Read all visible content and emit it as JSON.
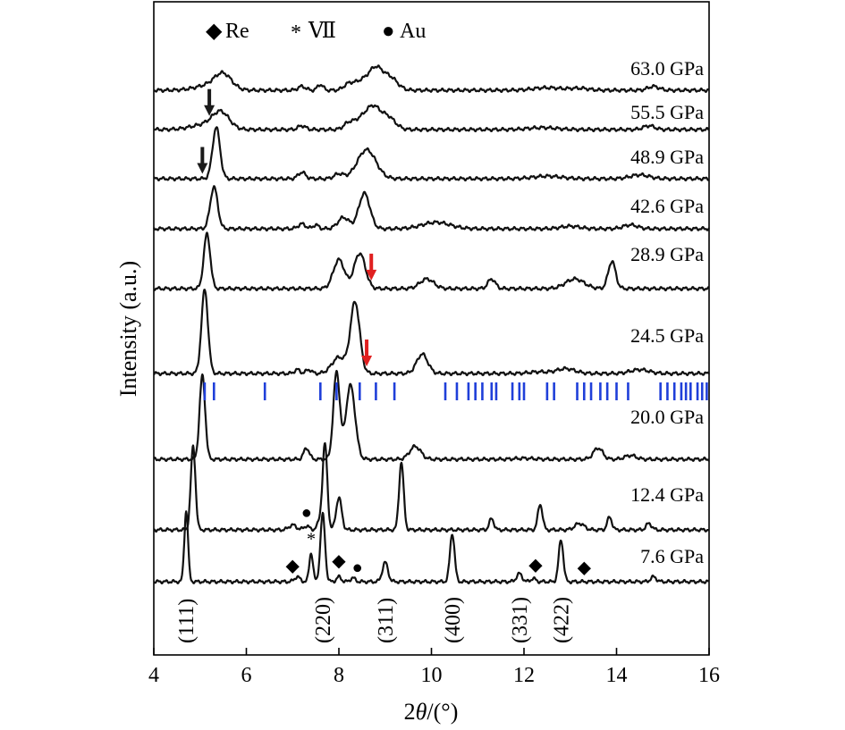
{
  "chart_data": {
    "type": "line",
    "xlabel_prefix": "2",
    "xlabel_theta": "θ",
    "xlabel_unit": "/(°)",
    "ylabel": "Intensity (a.u.)",
    "xlim": [
      4,
      16
    ],
    "xticks": [
      4,
      6,
      8,
      10,
      12,
      14,
      16
    ],
    "legend": [
      {
        "symbol": "◆",
        "label": "Re"
      },
      {
        "symbol": "*",
        "label": "Ⅶ"
      },
      {
        "symbol": "●",
        "label": "Au"
      }
    ],
    "series": [
      {
        "name": "63.0 GPa",
        "peaks": [
          [
            5.2,
            0.15,
            0.3
          ],
          [
            5.5,
            0.45,
            0.18
          ],
          [
            7.2,
            0.12,
            0.08
          ],
          [
            7.6,
            0.18,
            0.06
          ],
          [
            8.2,
            0.15,
            0.1
          ],
          [
            8.5,
            0.3,
            0.18
          ],
          [
            8.8,
            0.6,
            0.14
          ],
          [
            9.1,
            0.4,
            0.16
          ],
          [
            12.5,
            0.08,
            0.3
          ],
          [
            13.2,
            0.06,
            0.2
          ],
          [
            14.8,
            0.12,
            0.12
          ]
        ]
      },
      {
        "name": "55.5 GPa",
        "peaks": [
          [
            5.1,
            0.15,
            0.3
          ],
          [
            5.45,
            0.5,
            0.18
          ],
          [
            7.2,
            0.12,
            0.08
          ],
          [
            8.2,
            0.15,
            0.1
          ],
          [
            8.5,
            0.35,
            0.18
          ],
          [
            8.75,
            0.55,
            0.14
          ],
          [
            9.05,
            0.4,
            0.16
          ],
          [
            12.4,
            0.06,
            0.3
          ],
          [
            14.7,
            0.12,
            0.12
          ]
        ]
      },
      {
        "name": "48.9 GPa",
        "peaks": [
          [
            5.35,
            1.6,
            0.08
          ],
          [
            7.2,
            0.2,
            0.08
          ],
          [
            8.0,
            0.15,
            0.1
          ],
          [
            8.6,
            0.9,
            0.2
          ],
          [
            12.5,
            0.08,
            0.3
          ],
          [
            14.5,
            0.12,
            0.2
          ]
        ]
      },
      {
        "name": "42.6 GPa",
        "peaks": [
          [
            5.3,
            1.3,
            0.08
          ],
          [
            7.2,
            0.15,
            0.08
          ],
          [
            7.5,
            0.12,
            0.06
          ],
          [
            8.1,
            0.35,
            0.12
          ],
          [
            8.55,
            1.1,
            0.12
          ],
          [
            10.1,
            0.2,
            0.3
          ],
          [
            13.0,
            0.08,
            0.2
          ],
          [
            14.3,
            0.12,
            0.15
          ]
        ]
      },
      {
        "name": "28.9 GPa",
        "peaks": [
          [
            5.15,
            1.7,
            0.07
          ],
          [
            8.0,
            0.9,
            0.12
          ],
          [
            8.45,
            1.1,
            0.12
          ],
          [
            9.9,
            0.3,
            0.15
          ],
          [
            11.3,
            0.3,
            0.08
          ],
          [
            13.1,
            0.3,
            0.2
          ],
          [
            13.9,
            0.85,
            0.08
          ]
        ]
      },
      {
        "name": "24.5 GPa",
        "peaks": [
          [
            5.1,
            2.6,
            0.07
          ],
          [
            7.1,
            0.12,
            0.06
          ],
          [
            7.35,
            0.12,
            0.06
          ],
          [
            8.0,
            0.5,
            0.15
          ],
          [
            8.35,
            2.2,
            0.1
          ],
          [
            9.8,
            0.6,
            0.12
          ],
          [
            12.3,
            0.05,
            0.2
          ],
          [
            12.9,
            0.15,
            0.2
          ],
          [
            14.5,
            0.12,
            0.2
          ]
        ]
      },
      {
        "name": "20.0 GPa",
        "peaks": [
          [
            5.05,
            2.6,
            0.06
          ],
          [
            7.3,
            0.35,
            0.06
          ],
          [
            7.95,
            2.7,
            0.07
          ],
          [
            8.25,
            2.3,
            0.1
          ],
          [
            9.65,
            0.4,
            0.12
          ],
          [
            12.0,
            0.03,
            0.2
          ],
          [
            13.6,
            0.35,
            0.1
          ],
          [
            14.3,
            0.12,
            0.12
          ]
        ]
      },
      {
        "name": "12.4 GPa",
        "peaks": [
          [
            4.85,
            2.6,
            0.05
          ],
          [
            7.0,
            0.15,
            0.08
          ],
          [
            7.3,
            0.12,
            0.06
          ],
          [
            7.6,
            0.3,
            0.06
          ],
          [
            7.7,
            2.6,
            0.05
          ],
          [
            8.0,
            1.0,
            0.06
          ],
          [
            9.35,
            2.1,
            0.05
          ],
          [
            11.3,
            0.35,
            0.05
          ],
          [
            12.35,
            0.8,
            0.05
          ],
          [
            13.2,
            0.2,
            0.1
          ],
          [
            13.85,
            0.4,
            0.05
          ],
          [
            14.7,
            0.2,
            0.06
          ]
        ]
      },
      {
        "name": "7.6 GPa",
        "peaks": [
          [
            4.7,
            2.2,
            0.04
          ],
          [
            7.1,
            0.15,
            0.06
          ],
          [
            7.4,
            0.9,
            0.04
          ],
          [
            7.65,
            2.1,
            0.05
          ],
          [
            8.0,
            0.15,
            0.05
          ],
          [
            8.3,
            0.12,
            0.05
          ],
          [
            9.0,
            0.6,
            0.06
          ],
          [
            10.45,
            1.5,
            0.05
          ],
          [
            11.9,
            0.25,
            0.06
          ],
          [
            12.2,
            0.1,
            0.05
          ],
          [
            12.8,
            1.3,
            0.05
          ],
          [
            14.8,
            0.15,
            0.06
          ]
        ]
      }
    ],
    "reference_ticks": [
      5.1,
      5.3,
      6.4,
      7.6,
      7.95,
      8.45,
      8.8,
      9.2,
      10.3,
      10.55,
      10.8,
      10.95,
      11.1,
      11.3,
      11.4,
      11.75,
      11.9,
      12.0,
      12.5,
      12.65,
      13.15,
      13.3,
      13.45,
      13.65,
      13.8,
      14.0,
      14.25,
      14.95,
      15.1,
      15.25,
      15.4,
      15.5,
      15.6,
      15.75,
      15.85,
      15.95
    ],
    "reflections": [
      {
        "label": "(111)",
        "x": 4.7
      },
      {
        "label": "(220)",
        "x": 7.65
      },
      {
        "label": "(311)",
        "x": 9.0
      },
      {
        "label": "(400)",
        "x": 10.45
      },
      {
        "label": "(331)",
        "x": 11.9
      },
      {
        "label": "(422)",
        "x": 12.8
      }
    ],
    "markers": [
      {
        "symbol": "◆",
        "x": 7.0,
        "curve": "7.6 GPa"
      },
      {
        "symbol": "*",
        "x": 7.4,
        "curve": "7.6 GPa"
      },
      {
        "symbol": "◆",
        "x": 8.0,
        "curve": "7.6 GPa"
      },
      {
        "symbol": "●",
        "x": 8.4,
        "curve": "7.6 GPa"
      },
      {
        "symbol": "◆",
        "x": 12.25,
        "curve": "7.6 GPa"
      },
      {
        "symbol": "◆",
        "x": 13.3,
        "curve": "7.6 GPa"
      },
      {
        "symbol": "●",
        "x": 7.3,
        "curve": "12.4 GPa"
      }
    ],
    "arrows": [
      {
        "x": 5.2,
        "curve": "55.5 GPa",
        "color": "#1a1a1a"
      },
      {
        "x": 5.05,
        "curve": "48.9 GPa",
        "color": "#1a1a1a"
      },
      {
        "x": 8.7,
        "curve": "28.9 GPa",
        "color": "#e02020"
      },
      {
        "x": 8.6,
        "curve": "24.5 GPa",
        "color": "#e02020"
      }
    ],
    "colors": {
      "curve": "#111111",
      "reference": "#1f3fd9",
      "red_arrow": "#e02020"
    }
  }
}
